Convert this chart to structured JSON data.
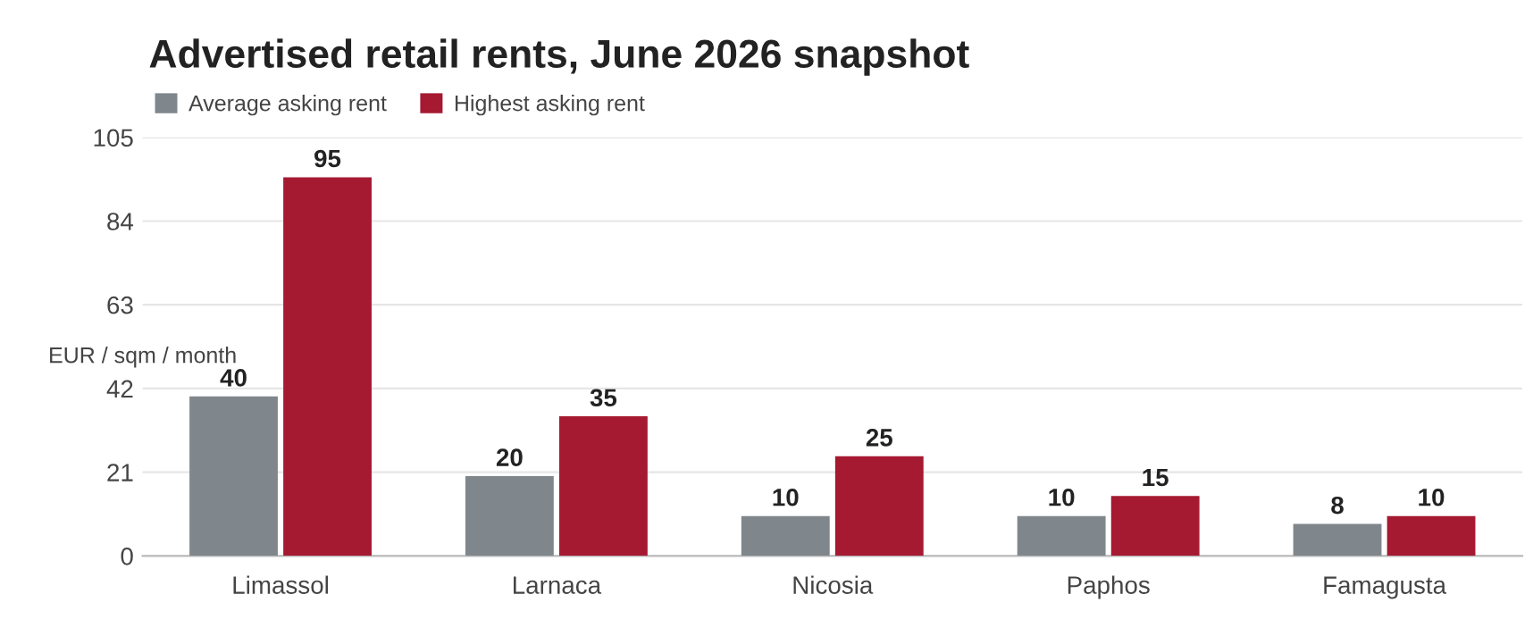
{
  "chart_data": {
    "type": "bar",
    "title": "Advertised retail rents, June 2026 snapshot",
    "ylabel": "EUR / sqm / month",
    "categories": [
      "Limassol",
      "Larnaca",
      "Nicosia",
      "Paphos",
      "Famagusta"
    ],
    "series": [
      {
        "name": "Average asking rent",
        "color": "#7f868c",
        "values": [
          40,
          20,
          10,
          10,
          8
        ]
      },
      {
        "name": "Highest asking rent",
        "color": "#a51931",
        "values": [
          95,
          35,
          25,
          15,
          10
        ]
      }
    ],
    "ylim": [
      0,
      105
    ],
    "yticks": [
      0,
      21,
      42,
      63,
      84,
      105
    ],
    "grid": "y",
    "legend": "top left",
    "data_labels": true
  }
}
